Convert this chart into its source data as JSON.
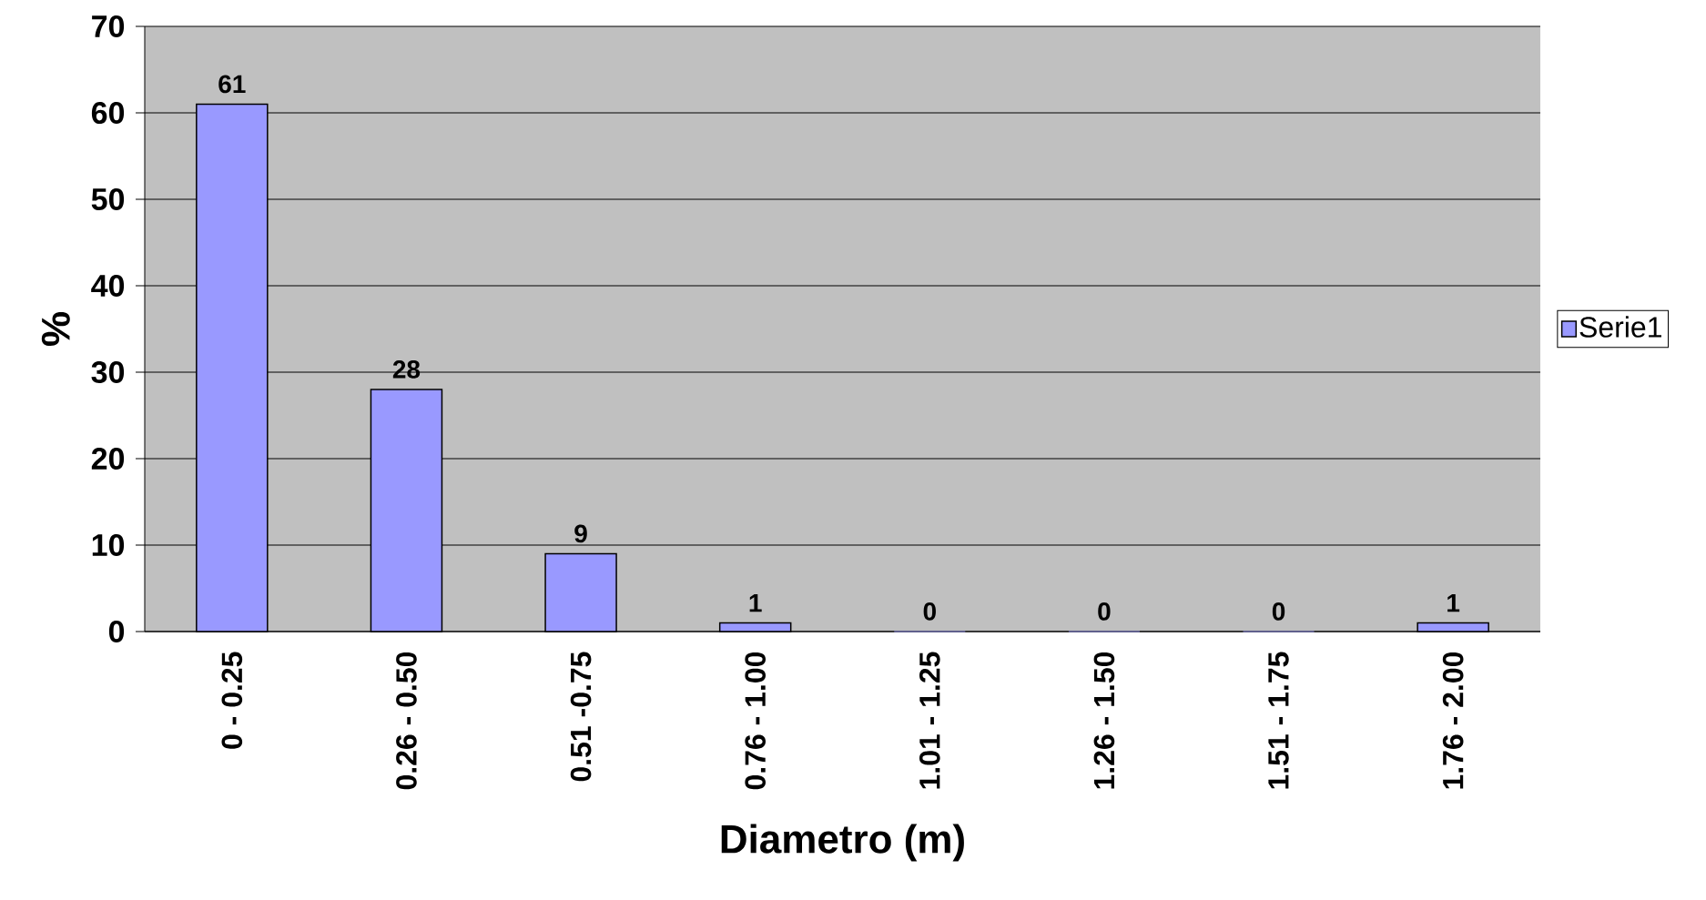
{
  "chart_data": {
    "type": "bar",
    "xlabel": "Diametro (m)",
    "ylabel": "%",
    "categories": [
      "0 - 0.25",
      "0.26 - 0.50",
      "0.51 -0.75",
      "0.76 - 1.00",
      "1.01 - 1.25",
      "1.26 - 1.50",
      "1.51 - 1.75",
      "1.76 - 2.00"
    ],
    "series": [
      {
        "name": "Serie1",
        "color": "#9999ff",
        "values": [
          61,
          28,
          9,
          1,
          0,
          0,
          0,
          1
        ]
      }
    ],
    "ylim": [
      0,
      70
    ],
    "yticks": [
      0,
      10,
      20,
      30,
      40,
      50,
      60,
      70
    ],
    "grid": "y",
    "legend": "right",
    "data_labels": true
  }
}
